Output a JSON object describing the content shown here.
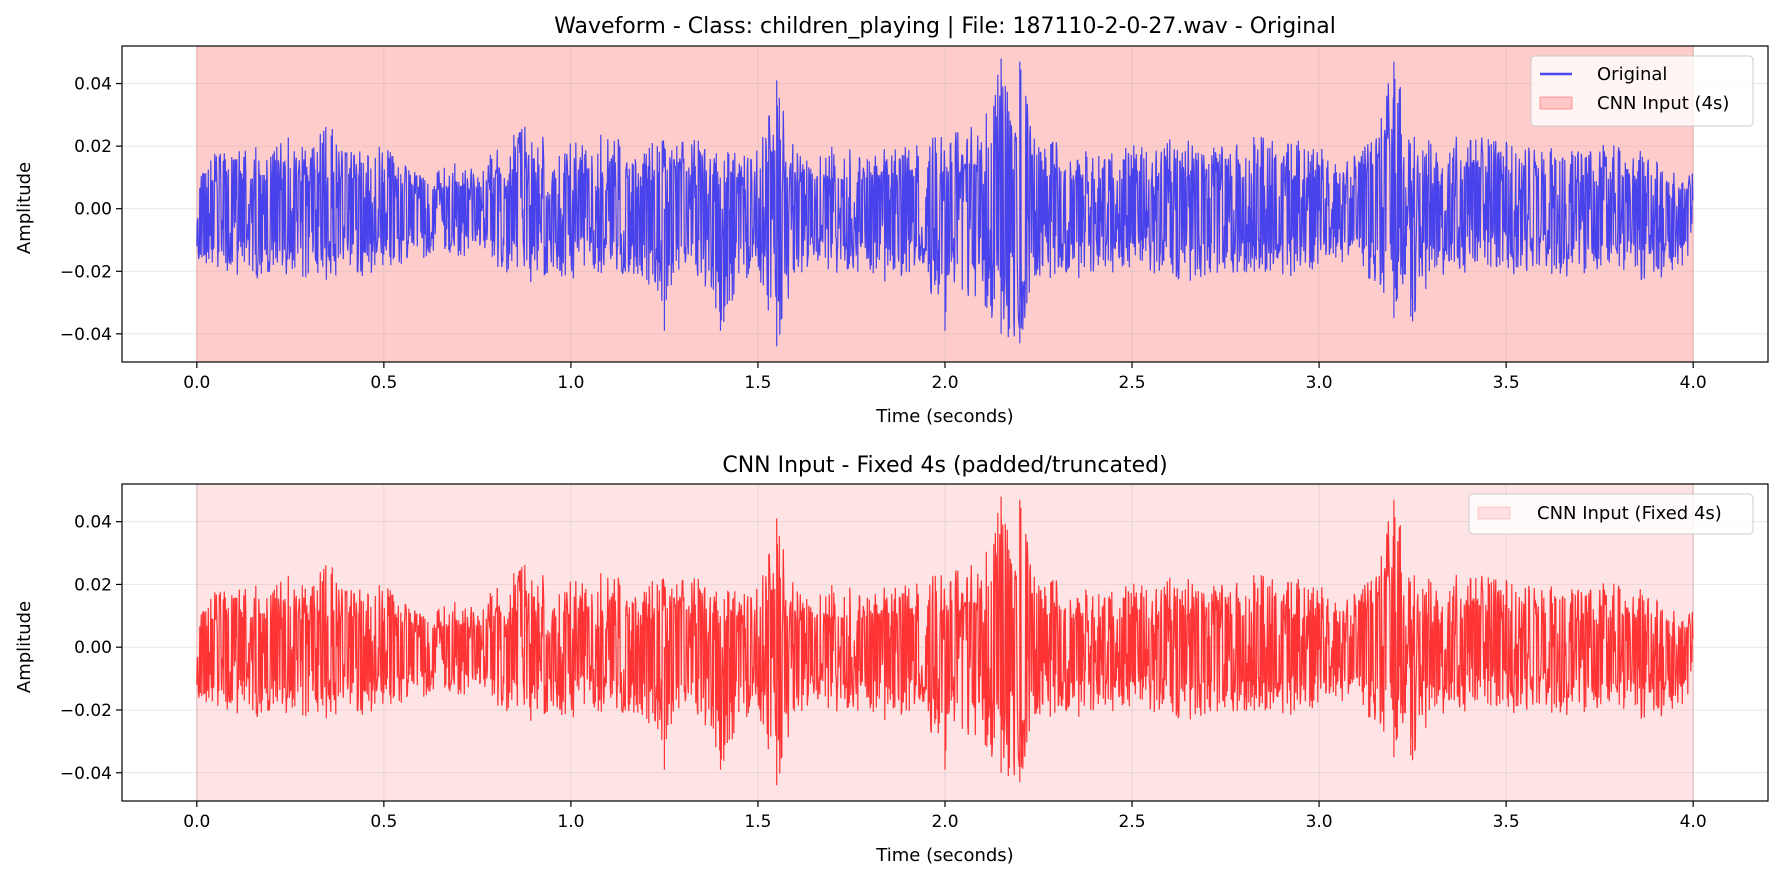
{
  "chart_data": [
    {
      "type": "line",
      "title": "Waveform - Class: children_playing | File: 187110-2-0-27.wav - Original",
      "xlabel": "Time (seconds)",
      "ylabel": "Amplitude",
      "xlim": [
        -0.2,
        4.2
      ],
      "ylim": [
        -0.049,
        0.052
      ],
      "xticks": [
        0.0,
        0.5,
        1.0,
        1.5,
        2.0,
        2.5,
        3.0,
        3.5,
        4.0
      ],
      "xtick_labels": [
        "0.0",
        "0.5",
        "1.0",
        "1.5",
        "2.0",
        "2.5",
        "3.0",
        "3.5",
        "4.0"
      ],
      "yticks": [
        -0.04,
        -0.02,
        0.0,
        0.02,
        0.04
      ],
      "ytick_labels": [
        "−0.04",
        "−0.02",
        "0.00",
        "0.02",
        "0.04"
      ],
      "grid": true,
      "legend_position": "top-right",
      "shaded_region": {
        "name": "CNN Input (4s)",
        "x": [
          0.0,
          4.0
        ],
        "color": "#ff9999",
        "opacity": 0.5
      },
      "series": [
        {
          "name": "Original",
          "color": "#3333ee",
          "opacity": 0.9,
          "x_range": [
            0.0,
            4.0
          ],
          "envelope": {
            "t": [
              0.0,
              0.05,
              0.1,
              0.15,
              0.2,
              0.25,
              0.3,
              0.35,
              0.4,
              0.45,
              0.5,
              0.55,
              0.6,
              0.65,
              0.7,
              0.75,
              0.8,
              0.85,
              0.9,
              0.95,
              1.0,
              1.05,
              1.1,
              1.15,
              1.2,
              1.25,
              1.3,
              1.35,
              1.4,
              1.45,
              1.5,
              1.55,
              1.6,
              1.65,
              1.7,
              1.75,
              1.8,
              1.85,
              1.9,
              1.95,
              2.0,
              2.05,
              2.1,
              2.15,
              2.2,
              2.25,
              2.3,
              2.35,
              2.4,
              2.45,
              2.5,
              2.55,
              2.6,
              2.65,
              2.7,
              2.75,
              2.8,
              2.85,
              2.9,
              2.95,
              3.0,
              3.05,
              3.1,
              3.15,
              3.2,
              3.25,
              3.3,
              3.35,
              3.4,
              3.45,
              3.5,
              3.55,
              3.6,
              3.65,
              3.7,
              3.75,
              3.8,
              3.85,
              3.9,
              3.95,
              4.0
            ],
            "max": [
              0.009,
              0.019,
              0.018,
              0.02,
              0.018,
              0.025,
              0.019,
              0.028,
              0.019,
              0.02,
              0.02,
              0.016,
              0.012,
              0.013,
              0.016,
              0.012,
              0.02,
              0.024,
              0.029,
              0.02,
              0.021,
              0.022,
              0.025,
              0.021,
              0.02,
              0.023,
              0.022,
              0.023,
              0.02,
              0.018,
              0.019,
              0.041,
              0.018,
              0.017,
              0.02,
              0.019,
              0.016,
              0.02,
              0.021,
              0.022,
              0.024,
              0.025,
              0.028,
              0.048,
              0.047,
              0.02,
              0.022,
              0.019,
              0.02,
              0.018,
              0.021,
              0.02,
              0.024,
              0.022,
              0.02,
              0.021,
              0.022,
              0.024,
              0.021,
              0.022,
              0.02,
              0.015,
              0.018,
              0.025,
              0.047,
              0.025,
              0.022,
              0.023,
              0.024,
              0.023,
              0.023,
              0.02,
              0.02,
              0.021,
              0.018,
              0.021,
              0.02,
              0.019,
              0.018,
              0.012,
              0.012
            ],
            "min": [
              -0.016,
              -0.02,
              -0.021,
              -0.023,
              -0.021,
              -0.022,
              -0.022,
              -0.023,
              -0.02,
              -0.023,
              -0.019,
              -0.02,
              -0.017,
              -0.015,
              -0.016,
              -0.013,
              -0.02,
              -0.021,
              -0.025,
              -0.021,
              -0.024,
              -0.022,
              -0.021,
              -0.022,
              -0.023,
              -0.039,
              -0.024,
              -0.022,
              -0.039,
              -0.024,
              -0.02,
              -0.044,
              -0.022,
              -0.02,
              -0.021,
              -0.02,
              -0.022,
              -0.024,
              -0.022,
              -0.023,
              -0.039,
              -0.028,
              -0.03,
              -0.04,
              -0.043,
              -0.024,
              -0.022,
              -0.023,
              -0.02,
              -0.021,
              -0.019,
              -0.021,
              -0.022,
              -0.024,
              -0.021,
              -0.022,
              -0.021,
              -0.02,
              -0.022,
              -0.022,
              -0.018,
              -0.016,
              -0.021,
              -0.024,
              -0.035,
              -0.036,
              -0.022,
              -0.021,
              -0.022,
              -0.02,
              -0.021,
              -0.021,
              -0.02,
              -0.022,
              -0.021,
              -0.02,
              -0.019,
              -0.023,
              -0.024,
              -0.02,
              -0.016
            ]
          }
        }
      ]
    },
    {
      "type": "line",
      "title": "CNN Input - Fixed 4s (padded/truncated)",
      "xlabel": "Time (seconds)",
      "ylabel": "Amplitude",
      "xlim": [
        -0.2,
        4.2
      ],
      "ylim": [
        -0.049,
        0.052
      ],
      "xticks": [
        0.0,
        0.5,
        1.0,
        1.5,
        2.0,
        2.5,
        3.0,
        3.5,
        4.0
      ],
      "xtick_labels": [
        "0.0",
        "0.5",
        "1.0",
        "1.5",
        "2.0",
        "2.5",
        "3.0",
        "3.5",
        "4.0"
      ],
      "yticks": [
        -0.04,
        -0.02,
        0.0,
        0.02,
        0.04
      ],
      "ytick_labels": [
        "−0.04",
        "−0.02",
        "0.00",
        "0.02",
        "0.04"
      ],
      "grid": true,
      "legend_position": "top-right",
      "shaded_region": {
        "name": "CNN Input (Fixed 4s)",
        "x": [
          0.0,
          4.0
        ],
        "color": "#ffb3b8",
        "opacity": 0.35
      },
      "series": [
        {
          "name": "",
          "color": "#ff1f1f",
          "opacity": 0.9,
          "x_range": [
            0.0,
            4.0
          ],
          "envelope": {
            "t": [
              0.0,
              0.05,
              0.1,
              0.15,
              0.2,
              0.25,
              0.3,
              0.35,
              0.4,
              0.45,
              0.5,
              0.55,
              0.6,
              0.65,
              0.7,
              0.75,
              0.8,
              0.85,
              0.9,
              0.95,
              1.0,
              1.05,
              1.1,
              1.15,
              1.2,
              1.25,
              1.3,
              1.35,
              1.4,
              1.45,
              1.5,
              1.55,
              1.6,
              1.65,
              1.7,
              1.75,
              1.8,
              1.85,
              1.9,
              1.95,
              2.0,
              2.05,
              2.1,
              2.15,
              2.2,
              2.25,
              2.3,
              2.35,
              2.4,
              2.45,
              2.5,
              2.55,
              2.6,
              2.65,
              2.7,
              2.75,
              2.8,
              2.85,
              2.9,
              2.95,
              3.0,
              3.05,
              3.1,
              3.15,
              3.2,
              3.25,
              3.3,
              3.35,
              3.4,
              3.45,
              3.5,
              3.55,
              3.6,
              3.65,
              3.7,
              3.75,
              3.8,
              3.85,
              3.9,
              3.95,
              4.0
            ],
            "max": [
              0.009,
              0.019,
              0.018,
              0.02,
              0.018,
              0.025,
              0.019,
              0.028,
              0.019,
              0.02,
              0.02,
              0.016,
              0.012,
              0.013,
              0.016,
              0.012,
              0.02,
              0.024,
              0.029,
              0.02,
              0.021,
              0.022,
              0.025,
              0.021,
              0.02,
              0.023,
              0.022,
              0.023,
              0.02,
              0.018,
              0.019,
              0.041,
              0.018,
              0.017,
              0.02,
              0.019,
              0.016,
              0.02,
              0.021,
              0.022,
              0.024,
              0.025,
              0.028,
              0.048,
              0.047,
              0.02,
              0.022,
              0.019,
              0.02,
              0.018,
              0.021,
              0.02,
              0.024,
              0.022,
              0.02,
              0.021,
              0.022,
              0.024,
              0.021,
              0.022,
              0.02,
              0.015,
              0.018,
              0.025,
              0.047,
              0.025,
              0.022,
              0.023,
              0.024,
              0.023,
              0.023,
              0.02,
              0.02,
              0.021,
              0.018,
              0.021,
              0.02,
              0.019,
              0.018,
              0.012,
              0.012
            ],
            "min": [
              -0.016,
              -0.02,
              -0.021,
              -0.023,
              -0.021,
              -0.022,
              -0.022,
              -0.023,
              -0.02,
              -0.023,
              -0.019,
              -0.02,
              -0.017,
              -0.015,
              -0.016,
              -0.013,
              -0.02,
              -0.021,
              -0.025,
              -0.021,
              -0.024,
              -0.022,
              -0.021,
              -0.022,
              -0.023,
              -0.039,
              -0.024,
              -0.022,
              -0.039,
              -0.024,
              -0.02,
              -0.044,
              -0.022,
              -0.02,
              -0.021,
              -0.02,
              -0.022,
              -0.024,
              -0.022,
              -0.023,
              -0.039,
              -0.028,
              -0.03,
              -0.04,
              -0.043,
              -0.024,
              -0.022,
              -0.023,
              -0.02,
              -0.021,
              -0.019,
              -0.021,
              -0.022,
              -0.024,
              -0.021,
              -0.022,
              -0.021,
              -0.02,
              -0.022,
              -0.022,
              -0.018,
              -0.016,
              -0.021,
              -0.024,
              -0.035,
              -0.036,
              -0.022,
              -0.021,
              -0.022,
              -0.02,
              -0.021,
              -0.021,
              -0.02,
              -0.022,
              -0.021,
              -0.02,
              -0.019,
              -0.023,
              -0.024,
              -0.02,
              -0.016
            ]
          }
        }
      ]
    }
  ]
}
